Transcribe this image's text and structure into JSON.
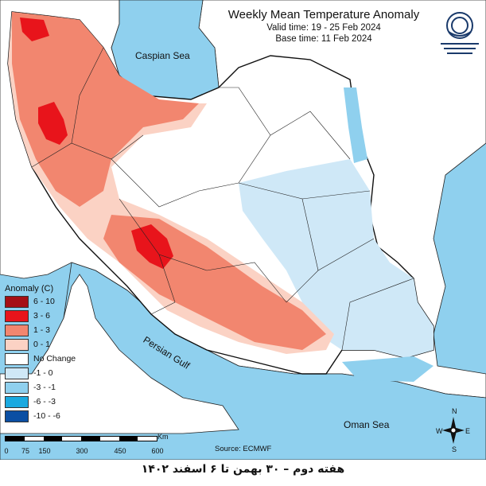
{
  "title": {
    "main": "Weekly Mean Temperature Anomaly",
    "valid": "Valid time: 19 - 25 Feb 2024",
    "base": "Base time: 11 Feb 2024"
  },
  "labels": {
    "caspian": "Caspian Sea",
    "persian_gulf": "Persian Gulf",
    "oman": "Oman Sea"
  },
  "legend": {
    "title": "Anomaly (C)",
    "items": [
      {
        "label": "6 - 10",
        "color": "#a50f15"
      },
      {
        "label": "3 - 6",
        "color": "#e8141b"
      },
      {
        "label": "1 - 3",
        "color": "#f2866f"
      },
      {
        "label": "0 - 1",
        "color": "#fbd2c4"
      },
      {
        "label": "No Change",
        "color": "#ffffff"
      },
      {
        "label": "-1 - 0",
        "color": "#cfe8f7"
      },
      {
        "label": "-3 - -1",
        "color": "#8fd0ee"
      },
      {
        "label": "-6 - -3",
        "color": "#1aa9e0"
      },
      {
        "label": "-10 - -6",
        "color": "#0b4fa3"
      }
    ]
  },
  "scale": {
    "ticks": [
      "0",
      "75",
      "150",
      "300",
      "450",
      "600"
    ],
    "unit": "Km"
  },
  "source": "Source: ECMWF",
  "footer": "هفته دوم – ۳۰ بهمن تا ۶ اسفند ۱۴۰۲",
  "colors": {
    "sea": "#8fd0ee",
    "neighbor": "#ffffff",
    "warm_strong": "#e8141b",
    "warm": "#f2866f",
    "warm_light": "#fbd2c4",
    "cool_light": "#cfe8f7",
    "cool": "#8fd0ee"
  },
  "compass": {
    "n": "N",
    "s": "S",
    "e": "E",
    "w": "W"
  }
}
